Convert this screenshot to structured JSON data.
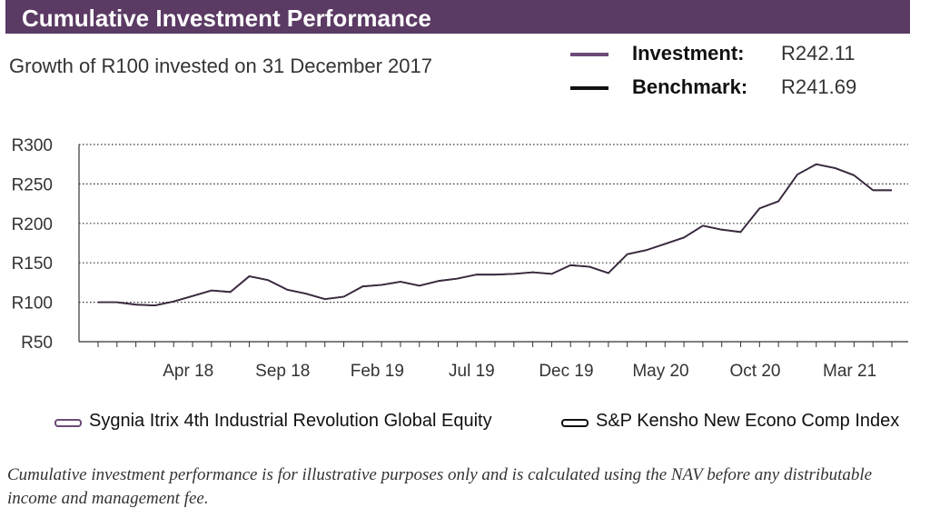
{
  "header": {
    "title": "Cumulative Investment Performance"
  },
  "subtitle": "Growth of R100 invested on 31 December 2017",
  "summary": [
    {
      "label": "Investment:",
      "value": "R242.11",
      "color": "#6b4a78"
    },
    {
      "label": "Benchmark:",
      "value": "R241.69",
      "color": "#111111"
    }
  ],
  "chart_data": {
    "type": "line",
    "y_ticks": [
      "R300",
      "R250",
      "R200",
      "R150",
      "R100",
      "R50"
    ],
    "ylim": [
      50,
      300
    ],
    "x_labels": [
      "Apr 18",
      "Sep 18",
      "Feb 19",
      "Jul 19",
      "Dec 19",
      "May 20",
      "Oct 20",
      "Mar 21"
    ],
    "grid": "horizontal dotted",
    "x": [
      "Dec 17",
      "Jan 18",
      "Feb 18",
      "Mar 18",
      "Apr 18",
      "May 18",
      "Jun 18",
      "Jul 18",
      "Aug 18",
      "Sep 18",
      "Oct 18",
      "Nov 18",
      "Dec 18",
      "Jan 19",
      "Feb 19",
      "Mar 19",
      "Apr 19",
      "May 19",
      "Jun 19",
      "Jul 19",
      "Aug 19",
      "Sep 19",
      "Oct 19",
      "Nov 19",
      "Dec 19",
      "Jan 20",
      "Feb 20",
      "Mar 20",
      "Apr 20",
      "May 20",
      "Jun 20",
      "Jul 20",
      "Aug 20",
      "Sep 20",
      "Oct 20",
      "Nov 20",
      "Dec 20",
      "Jan 21",
      "Feb 21",
      "Mar 21",
      "Apr 21",
      "May 21",
      "Jun 21"
    ],
    "series": [
      {
        "name": "Sygnia Itrix 4th Industrial Revolution Global Equity",
        "color": "#6b4a78",
        "values": [
          100,
          100,
          97,
          96,
          101,
          108,
          115,
          113,
          133,
          128,
          116,
          111,
          104,
          107,
          120,
          122,
          126,
          121,
          127,
          130,
          135,
          135,
          136,
          138,
          136,
          147,
          145,
          137,
          161,
          166,
          174,
          182,
          197,
          192,
          189,
          219,
          228,
          262,
          275,
          270,
          261,
          242,
          242
        ]
      },
      {
        "name": "S&P Kensho New Econo Comp Index",
        "color": "#111111",
        "values": [
          100,
          100,
          97,
          96,
          101,
          108,
          115,
          113,
          133,
          128,
          116,
          111,
          104,
          107,
          120,
          122,
          126,
          121,
          127,
          130,
          135,
          135,
          136,
          138,
          136,
          147,
          145,
          137,
          161,
          166,
          174,
          182,
          197,
          192,
          189,
          219,
          228,
          262,
          275,
          270,
          261,
          242,
          242
        ]
      }
    ]
  },
  "legend": [
    {
      "label": "Sygnia Itrix 4th Industrial Revolution Global Equity",
      "color": "#6b4a78"
    },
    {
      "label": "S&P Kensho New Econo Comp Index",
      "color": "#111111"
    }
  ],
  "footnote": "Cumulative investment performance is for illustrative purposes only and is calculated using the NAV before any distributable income and management fee."
}
